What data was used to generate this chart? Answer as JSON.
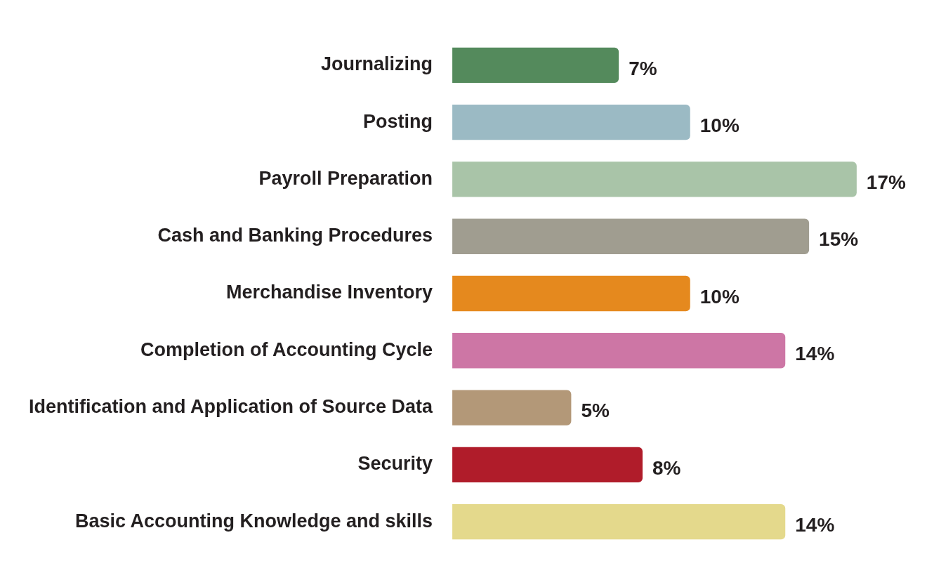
{
  "chart_data": {
    "type": "bar",
    "orientation": "horizontal",
    "categories": [
      "Journalizing",
      "Posting",
      "Payroll Preparation",
      "Cash and Banking Procedures",
      "Merchandise Inventory",
      "Completion of Accounting Cycle",
      "Identification and Application of Source Data",
      "Security",
      "Basic Accounting Knowledge and skills"
    ],
    "values": [
      7,
      10,
      17,
      15,
      10,
      14,
      5,
      8,
      14
    ],
    "value_labels": [
      "7%",
      "10%",
      "17%",
      "15%",
      "10%",
      "14%",
      "5%",
      "8%",
      "14%"
    ],
    "colors": [
      "#548a5c",
      "#9bbac4",
      "#a9c4a8",
      "#a09d90",
      "#e5891e",
      "#cd76a5",
      "#b39878",
      "#b01c2a",
      "#e4d98c"
    ],
    "legend": false
  }
}
